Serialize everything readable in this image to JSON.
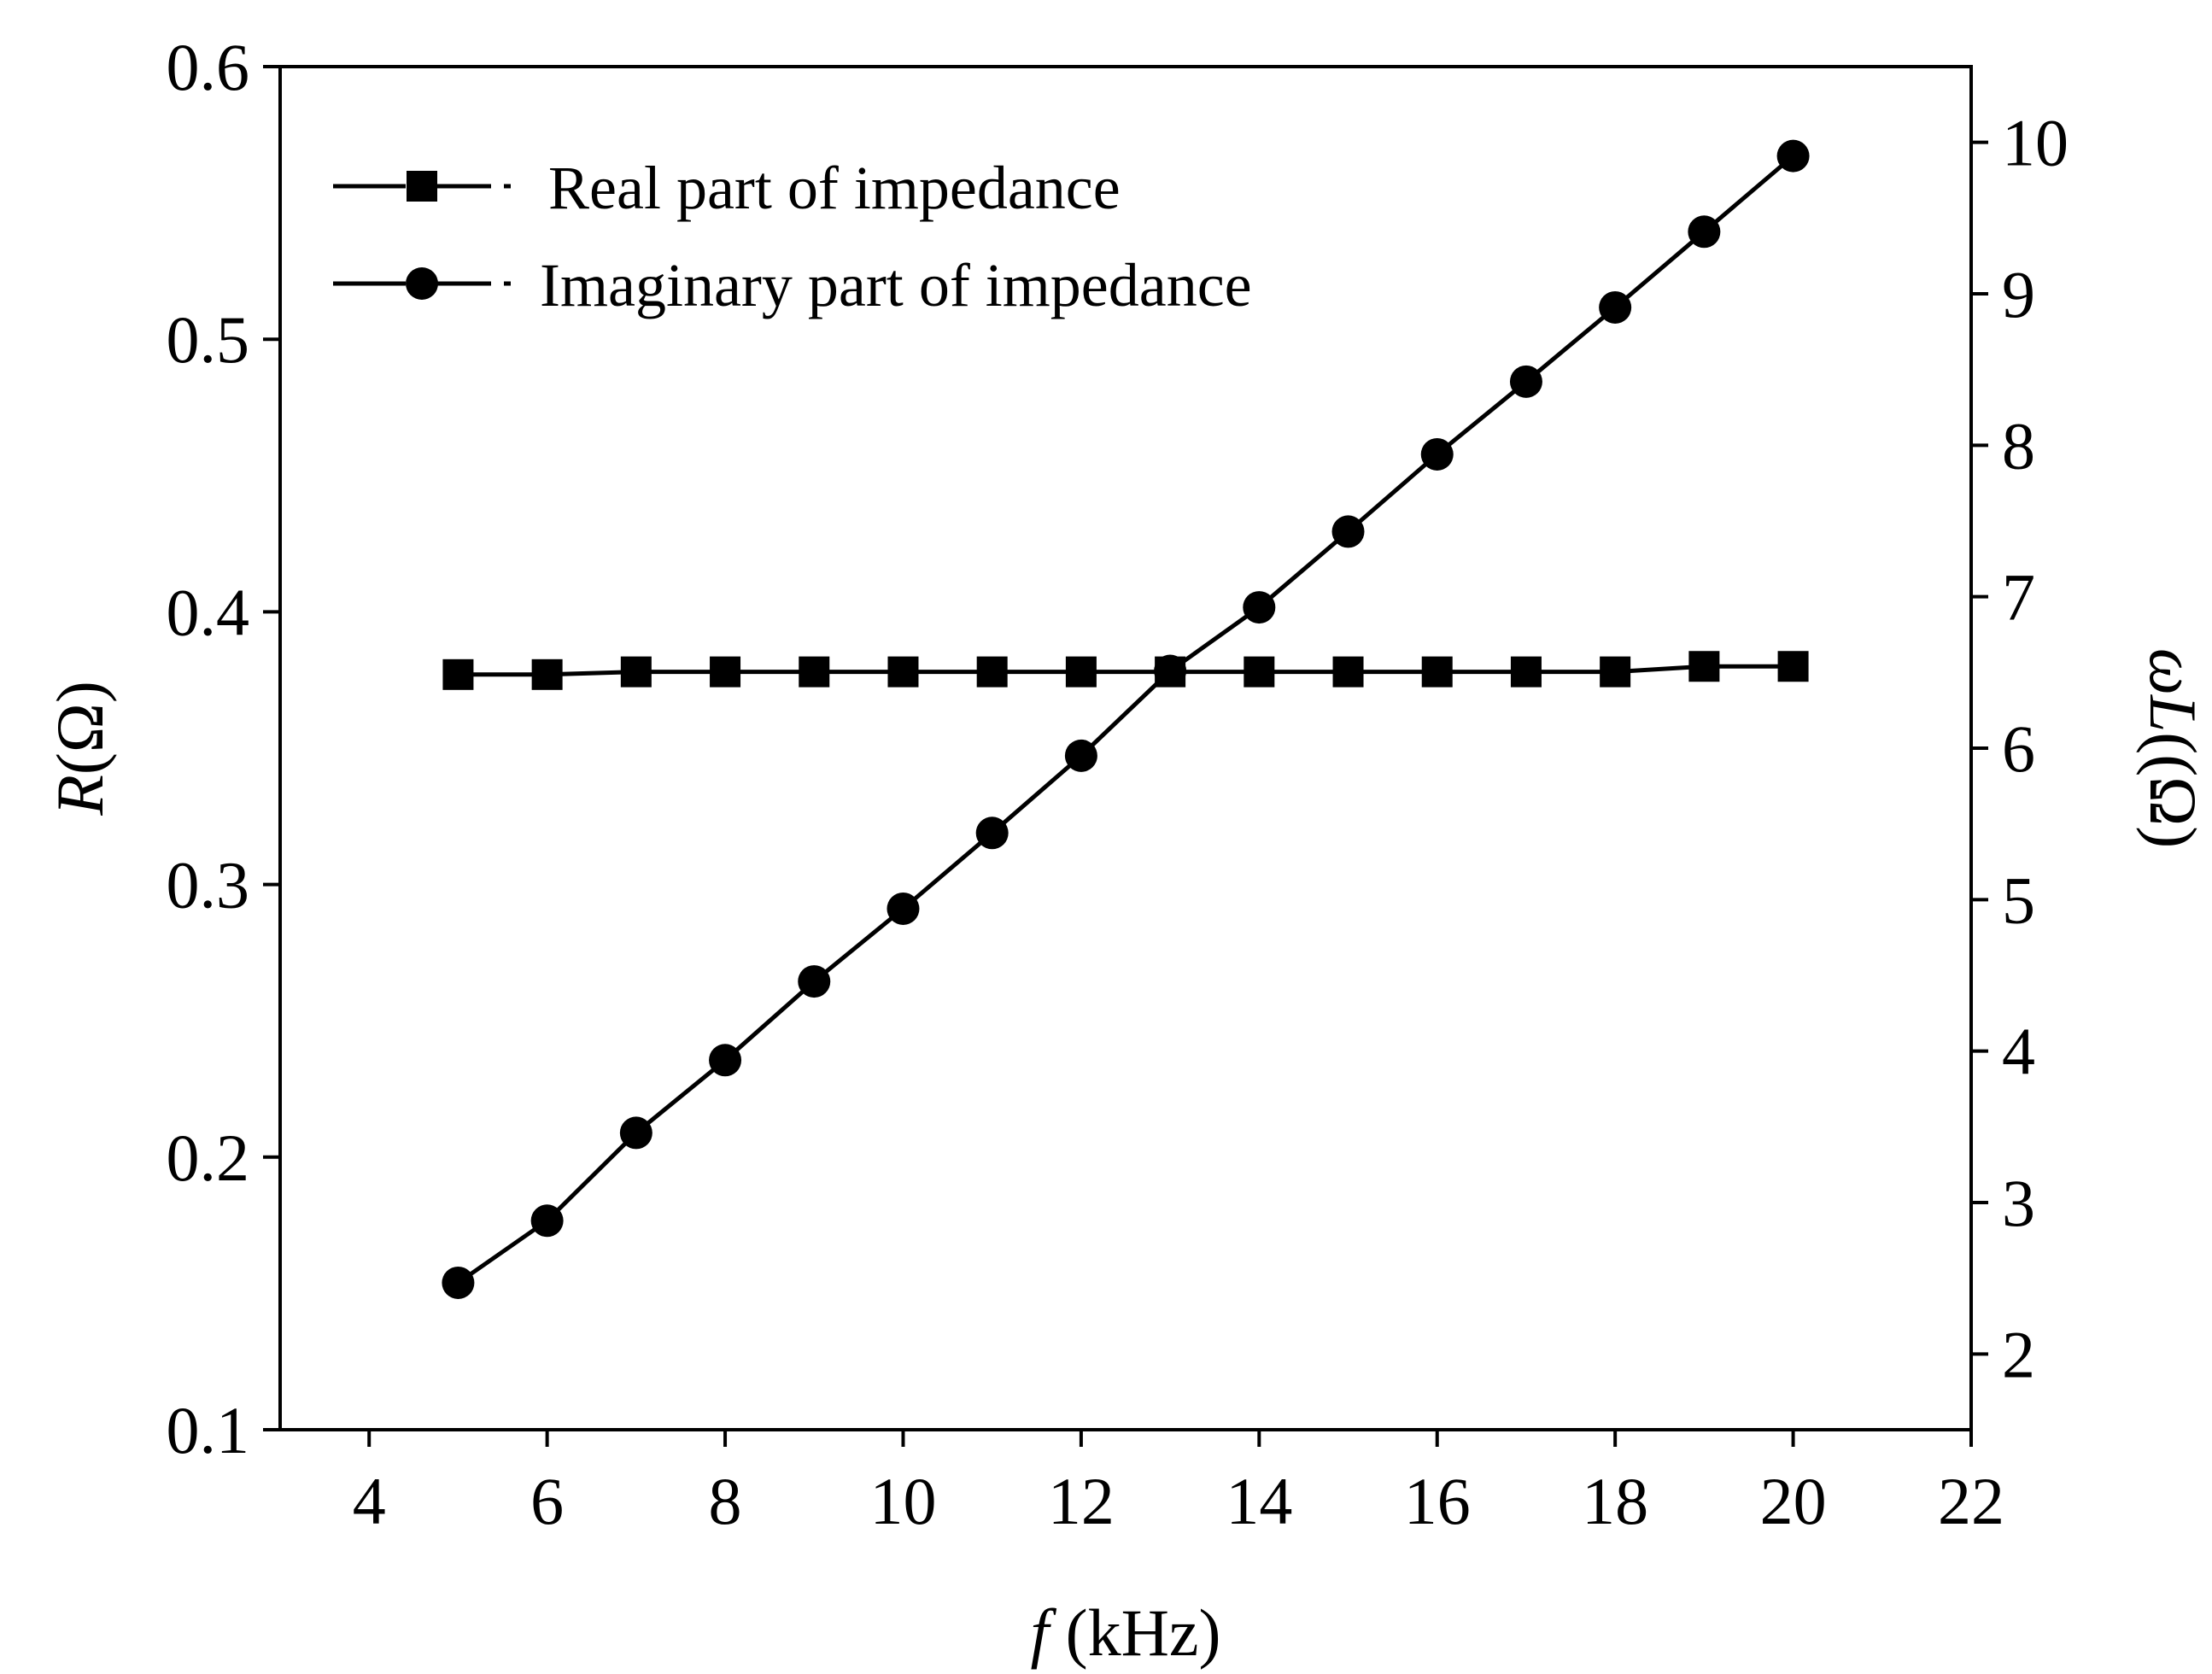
{
  "chart_data": {
    "type": "line",
    "x": [
      5,
      6,
      7,
      8,
      9,
      10,
      11,
      12,
      13,
      14,
      15,
      16,
      17,
      18,
      19,
      20
    ],
    "xlim": [
      3,
      22
    ],
    "xticks": [
      4,
      6,
      8,
      10,
      12,
      14,
      16,
      18,
      20,
      22
    ],
    "xticklabels": [
      "4",
      "6",
      "8",
      "10",
      "12",
      "14",
      "16",
      "18",
      "20",
      "22"
    ],
    "xlabel_italic": "f",
    "xlabel_unit": " (kHz)",
    "left_axis": {
      "ylim": [
        0.1,
        0.6
      ],
      "yticks": [
        0.1,
        0.2,
        0.3,
        0.4,
        0.5,
        0.6
      ],
      "yticklabels": [
        "0.1",
        "0.2",
        "0.3",
        "0.4",
        "0.5",
        "0.6"
      ],
      "label_italic": "R",
      "label_unit": "(Ω)"
    },
    "right_axis": {
      "ylim": [
        1.5,
        10.5
      ],
      "yticks": [
        2,
        3,
        4,
        5,
        6,
        7,
        8,
        9,
        10
      ],
      "yticklabels": [
        "2",
        "3",
        "4",
        "5",
        "6",
        "7",
        "8",
        "9",
        "10"
      ],
      "label_italic": "ωL",
      "label_unit": "((Ω)"
    },
    "series": [
      {
        "name": "Real part of impedance",
        "axis": "left",
        "marker": "square",
        "values": [
          0.377,
          0.377,
          0.378,
          0.378,
          0.378,
          0.378,
          0.378,
          0.378,
          0.378,
          0.378,
          0.378,
          0.378,
          0.378,
          0.378,
          0.38,
          0.38
        ]
      },
      {
        "name": "Imaginary part of impedance",
        "axis": "right",
        "marker": "circle",
        "values": [
          2.47,
          2.88,
          3.46,
          3.94,
          4.46,
          4.94,
          5.44,
          5.95,
          6.51,
          6.93,
          7.43,
          7.94,
          8.42,
          8.91,
          9.41,
          9.91
        ]
      }
    ],
    "legend_position": "top-left",
    "grid": false
  }
}
